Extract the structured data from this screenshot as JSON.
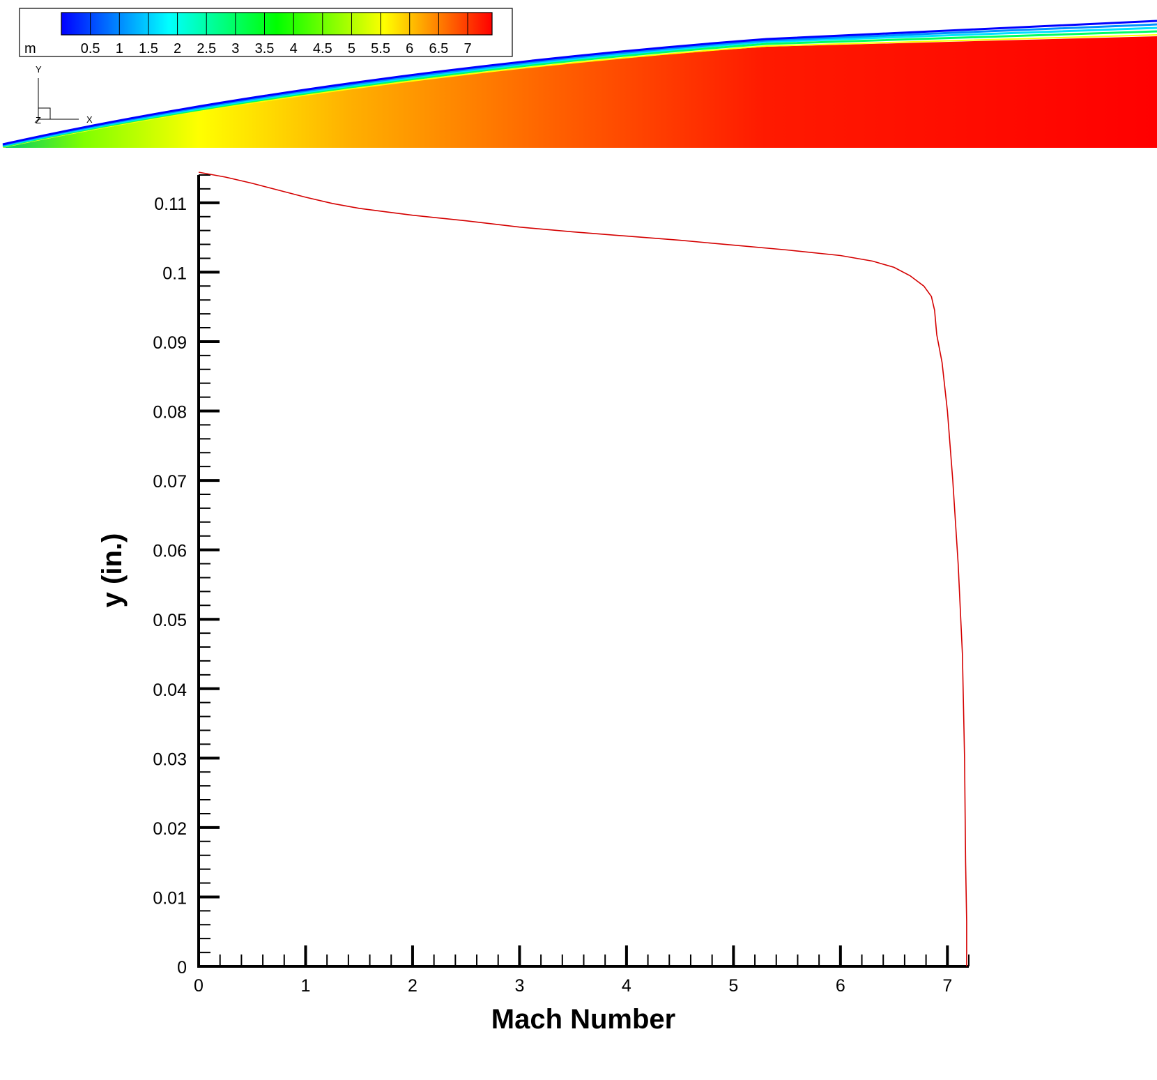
{
  "contour": {
    "variable_label": "m",
    "levels": [
      0.5,
      1,
      1.5,
      2,
      2.5,
      3,
      3.5,
      4,
      4.5,
      5,
      5.5,
      6,
      6.5,
      7
    ],
    "tick_labels": [
      "0.5",
      "1",
      "1.5",
      "2",
      "2.5",
      "3",
      "3.5",
      "4",
      "4.5",
      "5",
      "5.5",
      "6",
      "6.5",
      "7"
    ],
    "colormap": [
      "#0000ff",
      "#0080ff",
      "#00ffff",
      "#00ff80",
      "#00ff00",
      "#80ff00",
      "#ffff00",
      "#ff8000",
      "#ff0000"
    ],
    "axes_triad": {
      "x": "X",
      "y": "Y",
      "z": "Z"
    }
  },
  "chart_data": {
    "type": "line",
    "title": "",
    "xlabel": "Mach Number",
    "ylabel": "y (in.)",
    "xlim": [
      0,
      7.2
    ],
    "ylim": [
      0,
      0.114
    ],
    "x_ticks": [
      "0",
      "1",
      "2",
      "3",
      "4",
      "5",
      "6",
      "7"
    ],
    "y_ticks": [
      "0",
      "0.01",
      "0.02",
      "0.03",
      "0.04",
      "0.05",
      "0.06",
      "0.07",
      "0.08",
      "0.09",
      "0.1",
      "0.11"
    ],
    "grid": false,
    "series": [
      {
        "name": "",
        "color": "#d40000",
        "points": [
          [
            0.0,
            0.1144
          ],
          [
            0.25,
            0.1137
          ],
          [
            0.5,
            0.1128
          ],
          [
            0.75,
            0.1118
          ],
          [
            1.0,
            0.1108
          ],
          [
            1.25,
            0.1099
          ],
          [
            1.5,
            0.1092
          ],
          [
            1.75,
            0.1087
          ],
          [
            2.0,
            0.1082
          ],
          [
            2.5,
            0.1074
          ],
          [
            3.0,
            0.1065
          ],
          [
            3.5,
            0.1058
          ],
          [
            4.0,
            0.1052
          ],
          [
            4.5,
            0.1046
          ],
          [
            5.0,
            0.1039
          ],
          [
            5.5,
            0.1032
          ],
          [
            6.0,
            0.1024
          ],
          [
            6.3,
            0.1016
          ],
          [
            6.5,
            0.1007
          ],
          [
            6.65,
            0.0995
          ],
          [
            6.78,
            0.098
          ],
          [
            6.85,
            0.0965
          ],
          [
            6.88,
            0.0945
          ],
          [
            6.9,
            0.091
          ],
          [
            6.95,
            0.087
          ],
          [
            7.0,
            0.08
          ],
          [
            7.05,
            0.07
          ],
          [
            7.1,
            0.058
          ],
          [
            7.14,
            0.045
          ],
          [
            7.16,
            0.03
          ],
          [
            7.17,
            0.015
          ],
          [
            7.18,
            0.0065
          ],
          [
            7.18,
            0.0
          ]
        ]
      }
    ]
  }
}
